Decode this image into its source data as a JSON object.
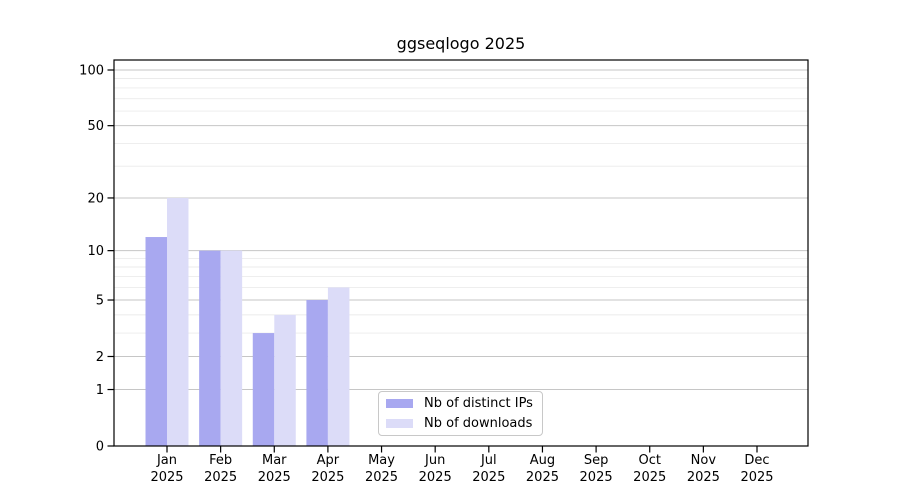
{
  "title": "ggseqlogo 2025",
  "legend": {
    "items": [
      {
        "label": "Nb of distinct IPs"
      },
      {
        "label": "Nb of downloads"
      }
    ]
  },
  "colors": {
    "distinct_ips": "#a8a8f0",
    "downloads": "#dcdcf8",
    "grid_major": "#c6c6c6",
    "grid_minor": "#ebebeb",
    "axis": "#000000",
    "text": "#000000",
    "legend_border": "#c8c8c8",
    "background": "#ffffff"
  },
  "chart_data": {
    "type": "bar",
    "title": "ggseqlogo 2025",
    "categories": [
      "Jan 2025",
      "Feb 2025",
      "Mar 2025",
      "Apr 2025",
      "May 2025",
      "Jun 2025",
      "Jul 2025",
      "Aug 2025",
      "Sep 2025",
      "Oct 2025",
      "Nov 2025",
      "Dec 2025"
    ],
    "series": [
      {
        "name": "Nb of distinct IPs",
        "color": "#a8a8f0",
        "values": [
          12,
          10,
          3,
          5,
          null,
          null,
          null,
          null,
          null,
          null,
          null,
          null
        ]
      },
      {
        "name": "Nb of downloads",
        "color": "#dcdcf8",
        "values": [
          20,
          10,
          4,
          6,
          null,
          null,
          null,
          null,
          null,
          null,
          null,
          null
        ]
      }
    ],
    "y_scale": "log1p",
    "y_ticks": [
      0,
      1,
      2,
      5,
      10,
      20,
      50,
      100
    ],
    "y_minor_gridlines": [
      3,
      4,
      6,
      7,
      8,
      9,
      30,
      40,
      60,
      70,
      80,
      90
    ],
    "ylim": [
      0,
      113
    ],
    "xlabel": "",
    "ylabel": "",
    "grid": true,
    "legend_position": "lower center"
  }
}
